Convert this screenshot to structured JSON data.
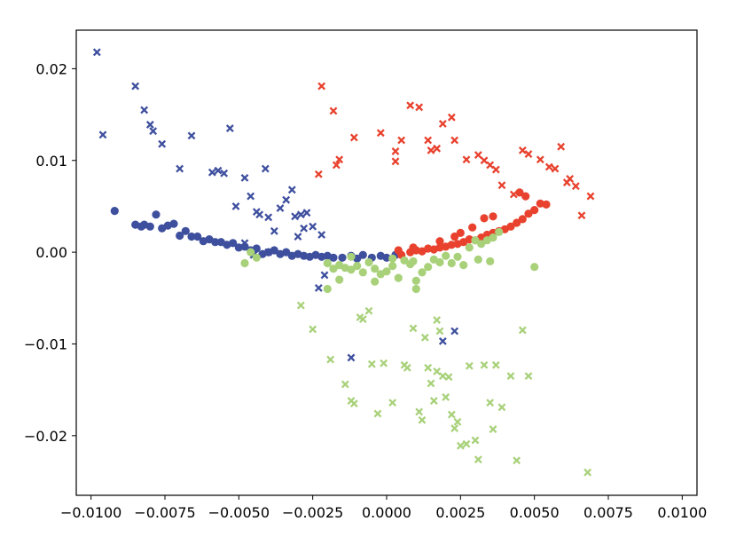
{
  "chart_data": {
    "type": "scatter",
    "title": "",
    "xlabel": "",
    "ylabel": "",
    "xlim": [
      -0.0105,
      0.0105
    ],
    "ylim": [
      -0.0265,
      0.0242
    ],
    "grid": false,
    "x_ticks": [
      -0.01,
      -0.0075,
      -0.005,
      -0.0025,
      0.0,
      0.0025,
      0.005,
      0.0075,
      0.01
    ],
    "x_tick_labels": [
      "−0.0100",
      "−0.0075",
      "−0.0050",
      "−0.0025",
      "0.0000",
      "0.0025",
      "0.0050",
      "0.0075",
      "0.0100"
    ],
    "y_ticks": [
      0.02,
      0.01,
      0.0,
      -0.01,
      -0.02
    ],
    "y_tick_labels": [
      "0.02",
      "0.01",
      "0.00",
      "−0.01",
      "−0.02"
    ],
    "series": [
      {
        "color": "#3e4f9e",
        "marker": "circle",
        "points": [
          [
            -0.0092,
            0.0045
          ],
          [
            -0.0085,
            0.003
          ],
          [
            -0.0083,
            0.0028
          ],
          [
            -0.0082,
            0.003
          ],
          [
            -0.008,
            0.0028
          ],
          [
            -0.0078,
            0.0041
          ],
          [
            -0.0076,
            0.0026
          ],
          [
            -0.0074,
            0.0029
          ],
          [
            -0.0072,
            0.0031
          ],
          [
            -0.007,
            0.0018
          ],
          [
            -0.0068,
            0.0023
          ],
          [
            -0.0066,
            0.0017
          ],
          [
            -0.0064,
            0.0017
          ],
          [
            -0.0062,
            0.0012
          ],
          [
            -0.006,
            0.0014
          ],
          [
            -0.0058,
            0.0011
          ],
          [
            -0.0056,
            0.0011
          ],
          [
            -0.0054,
            0.0008
          ],
          [
            -0.0052,
            0.001
          ],
          [
            -0.005,
            0.0005
          ],
          [
            -0.0048,
            0.0006
          ],
          [
            -0.0046,
            0.0002
          ],
          [
            -0.0044,
            0.0004
          ],
          [
            -0.0042,
            -0.0002
          ],
          [
            -0.004,
            0.0
          ],
          [
            -0.0038,
            0.0002
          ],
          [
            -0.0036,
            -0.0002
          ],
          [
            -0.0034,
            0.0
          ],
          [
            -0.0032,
            -0.0004
          ],
          [
            -0.003,
            -0.0002
          ],
          [
            -0.0028,
            -0.0004
          ],
          [
            -0.0026,
            -0.0005
          ],
          [
            -0.0024,
            -0.0003
          ],
          [
            -0.0022,
            -0.0005
          ],
          [
            -0.002,
            -0.0004
          ],
          [
            -0.0018,
            -0.0006
          ],
          [
            -0.0015,
            -0.0006
          ],
          [
            -0.0012,
            -0.0004
          ],
          [
            -0.001,
            -0.0007
          ],
          [
            -0.0008,
            -0.0003
          ],
          [
            -0.0005,
            -0.0006
          ],
          [
            -0.0002,
            -0.0004
          ],
          [
            0.0,
            -0.0006
          ],
          [
            0.0003,
            -0.0003
          ]
        ]
      },
      {
        "color": "#3e4f9e",
        "marker": "x",
        "points": [
          [
            -0.0098,
            0.0218
          ],
          [
            -0.0096,
            0.0128
          ],
          [
            -0.0085,
            0.0181
          ],
          [
            -0.0082,
            0.0155
          ],
          [
            -0.008,
            0.0139
          ],
          [
            -0.0079,
            0.0132
          ],
          [
            -0.0076,
            0.0118
          ],
          [
            -0.007,
            0.0091
          ],
          [
            -0.0066,
            0.0127
          ],
          [
            -0.0059,
            0.0087
          ],
          [
            -0.0057,
            0.0089
          ],
          [
            -0.0055,
            0.0086
          ],
          [
            -0.0053,
            0.0135
          ],
          [
            -0.0051,
            0.005
          ],
          [
            -0.0048,
            0.0081
          ],
          [
            -0.0046,
            0.0061
          ],
          [
            -0.0044,
            0.0044
          ],
          [
            -0.0043,
            0.0041
          ],
          [
            -0.0041,
            0.0091
          ],
          [
            -0.004,
            0.0038
          ],
          [
            -0.0038,
            0.0023
          ],
          [
            -0.0036,
            0.0048
          ],
          [
            -0.0034,
            0.0057
          ],
          [
            -0.0032,
            0.0068
          ],
          [
            -0.0031,
            0.0039
          ],
          [
            -0.003,
            0.0017
          ],
          [
            -0.0029,
            0.0041
          ],
          [
            -0.0028,
            0.0026
          ],
          [
            -0.0027,
            0.0043
          ],
          [
            -0.0025,
            0.0028
          ],
          [
            -0.0022,
            0.0019
          ],
          [
            -0.0023,
            -0.0039
          ],
          [
            -0.0021,
            -0.0025
          ],
          [
            -0.0048,
            0.001
          ],
          [
            -0.0045,
            -0.0003
          ],
          [
            -0.0012,
            -0.0115
          ],
          [
            0.0019,
            -0.0097
          ],
          [
            0.0023,
            -0.0086
          ],
          [
            -0.004,
            0.0
          ]
        ]
      },
      {
        "color": "#e8412d",
        "marker": "circle",
        "points": [
          [
            0.0005,
            -0.0003
          ],
          [
            0.0008,
            0.0
          ],
          [
            0.001,
            0.0002
          ],
          [
            0.0012,
            0.0001
          ],
          [
            0.0014,
            0.0004
          ],
          [
            0.0016,
            0.0003
          ],
          [
            0.0018,
            0.0005
          ],
          [
            0.002,
            0.0006
          ],
          [
            0.0022,
            0.0008
          ],
          [
            0.0024,
            0.0009
          ],
          [
            0.0026,
            0.0011
          ],
          [
            0.0028,
            0.0014
          ],
          [
            0.003,
            0.0013
          ],
          [
            0.0032,
            0.0016
          ],
          [
            0.0034,
            0.0019
          ],
          [
            0.0036,
            0.0021
          ],
          [
            0.0038,
            0.0023
          ],
          [
            0.004,
            0.0025
          ],
          [
            0.0042,
            0.0028
          ],
          [
            0.0044,
            0.0032
          ],
          [
            0.0046,
            0.0036
          ],
          [
            0.0048,
            0.0042
          ],
          [
            0.005,
            0.0046
          ],
          [
            0.0052,
            0.0053
          ],
          [
            0.0054,
            0.0052
          ],
          [
            0.0033,
            0.0037
          ],
          [
            0.0036,
            0.0039
          ],
          [
            0.0045,
            0.0065
          ],
          [
            0.0047,
            0.0061
          ],
          [
            0.0029,
            0.0027
          ],
          [
            0.0025,
            0.0021
          ],
          [
            0.0023,
            0.0017
          ],
          [
            0.0018,
            0.0012
          ],
          [
            0.0009,
            0.0005
          ],
          [
            0.0004,
            0.0002
          ]
        ]
      },
      {
        "color": "#e8412d",
        "marker": "x",
        "points": [
          [
            -0.0022,
            0.0181
          ],
          [
            -0.0018,
            0.0154
          ],
          [
            -0.0016,
            0.0101
          ],
          [
            -0.0011,
            0.0125
          ],
          [
            -0.0002,
            0.013
          ],
          [
            0.0003,
            0.011
          ],
          [
            0.0003,
            0.0099
          ],
          [
            0.0005,
            0.0122
          ],
          [
            0.0008,
            0.016
          ],
          [
            0.0011,
            0.0158
          ],
          [
            0.0014,
            0.0122
          ],
          [
            0.0015,
            0.0111
          ],
          [
            0.0017,
            0.0113
          ],
          [
            0.0019,
            0.014
          ],
          [
            0.0022,
            0.0147
          ],
          [
            0.0023,
            0.0122
          ],
          [
            0.0027,
            0.0101
          ],
          [
            0.0031,
            0.0106
          ],
          [
            0.0033,
            0.01
          ],
          [
            0.0035,
            0.0095
          ],
          [
            0.0037,
            0.009
          ],
          [
            0.0039,
            0.0073
          ],
          [
            0.0043,
            0.0063
          ],
          [
            0.0046,
            0.0111
          ],
          [
            0.0048,
            0.0107
          ],
          [
            0.0052,
            0.0101
          ],
          [
            0.0055,
            0.0093
          ],
          [
            0.0057,
            0.0091
          ],
          [
            0.0059,
            0.0115
          ],
          [
            0.0061,
            0.0076
          ],
          [
            0.0062,
            0.008
          ],
          [
            0.0064,
            0.0072
          ],
          [
            0.0066,
            0.004
          ],
          [
            0.0069,
            0.0061
          ],
          [
            -0.0023,
            0.0085
          ],
          [
            -0.0017,
            0.0095
          ]
        ]
      },
      {
        "color": "#a8d17a",
        "marker": "circle",
        "points": [
          [
            -0.0048,
            -0.0012
          ],
          [
            -0.0046,
            0.0
          ],
          [
            -0.0044,
            -0.0006
          ],
          [
            -0.002,
            -0.0012
          ],
          [
            -0.0018,
            -0.0018
          ],
          [
            -0.0016,
            -0.0014
          ],
          [
            -0.0014,
            -0.0017
          ],
          [
            -0.0012,
            -0.0019
          ],
          [
            -0.001,
            -0.0015
          ],
          [
            -0.0008,
            -0.0022
          ],
          [
            -0.0006,
            -0.0011
          ],
          [
            -0.0004,
            -0.0018
          ],
          [
            -0.0002,
            -0.0024
          ],
          [
            0.0,
            -0.0021
          ],
          [
            0.0002,
            -0.0015
          ],
          [
            0.0004,
            -0.0028
          ],
          [
            0.0006,
            -0.0009
          ],
          [
            0.0008,
            -0.0013
          ],
          [
            0.001,
            -0.0031
          ],
          [
            0.0012,
            -0.0022
          ],
          [
            0.0014,
            -0.0016
          ],
          [
            0.0016,
            -0.0008
          ],
          [
            0.0018,
            -0.0011
          ],
          [
            0.002,
            -0.0004
          ],
          [
            0.0022,
            -0.0012
          ],
          [
            0.0024,
            -0.0005
          ],
          [
            0.0026,
            -0.0014
          ],
          [
            0.0028,
            0.0005
          ],
          [
            0.003,
            0.0013
          ],
          [
            0.0032,
            0.0009
          ],
          [
            0.0034,
            0.0013
          ],
          [
            0.0036,
            0.0016
          ],
          [
            0.0038,
            0.0022
          ],
          [
            0.0031,
            -0.0008
          ],
          [
            0.0035,
            -0.001
          ],
          [
            0.005,
            -0.0016
          ],
          [
            -0.0016,
            -0.003
          ],
          [
            -0.0004,
            -0.0032
          ],
          [
            -0.002,
            -0.004
          ],
          [
            0.001,
            -0.004
          ],
          [
            0.0009,
            -0.001
          ],
          [
            0.0002,
            -0.0007
          ],
          [
            -0.0012,
            -0.0005
          ]
        ]
      },
      {
        "color": "#a8d17a",
        "marker": "x",
        "points": [
          [
            -0.0029,
            -0.0058
          ],
          [
            -0.0025,
            -0.0084
          ],
          [
            -0.0019,
            -0.0117
          ],
          [
            -0.0014,
            -0.0144
          ],
          [
            -0.0012,
            -0.0162
          ],
          [
            -0.0011,
            -0.0165
          ],
          [
            -0.0009,
            -0.0071
          ],
          [
            -0.0008,
            -0.0073
          ],
          [
            -0.0006,
            -0.0064
          ],
          [
            -0.0005,
            -0.0122
          ],
          [
            -0.0003,
            -0.0176
          ],
          [
            -0.0001,
            -0.0121
          ],
          [
            0.0002,
            -0.0164
          ],
          [
            0.0006,
            -0.0123
          ],
          [
            0.0007,
            -0.0126
          ],
          [
            0.0009,
            -0.0083
          ],
          [
            0.0011,
            -0.0174
          ],
          [
            0.0012,
            -0.0183
          ],
          [
            0.0013,
            -0.0093
          ],
          [
            0.0014,
            -0.0126
          ],
          [
            0.0015,
            -0.0143
          ],
          [
            0.0016,
            -0.0162
          ],
          [
            0.0017,
            -0.0074
          ],
          [
            0.0018,
            -0.0086
          ],
          [
            0.0019,
            -0.0135
          ],
          [
            0.002,
            -0.0158
          ],
          [
            0.0021,
            -0.0136
          ],
          [
            0.0022,
            -0.0177
          ],
          [
            0.0023,
            -0.0192
          ],
          [
            0.0025,
            -0.0211
          ],
          [
            0.0027,
            -0.0209
          ],
          [
            0.0028,
            -0.0124
          ],
          [
            0.0031,
            -0.0226
          ],
          [
            0.0033,
            -0.0123
          ],
          [
            0.0035,
            -0.0164
          ],
          [
            0.0037,
            -0.0123
          ],
          [
            0.0039,
            -0.0169
          ],
          [
            0.0042,
            -0.0135
          ],
          [
            0.0044,
            -0.0227
          ],
          [
            0.0046,
            -0.0085
          ],
          [
            0.0048,
            -0.0135
          ],
          [
            0.0068,
            -0.024
          ],
          [
            0.0036,
            -0.0193
          ],
          [
            0.003,
            -0.0205
          ],
          [
            0.0024,
            -0.0185
          ],
          [
            0.0017,
            -0.013
          ]
        ]
      }
    ]
  }
}
